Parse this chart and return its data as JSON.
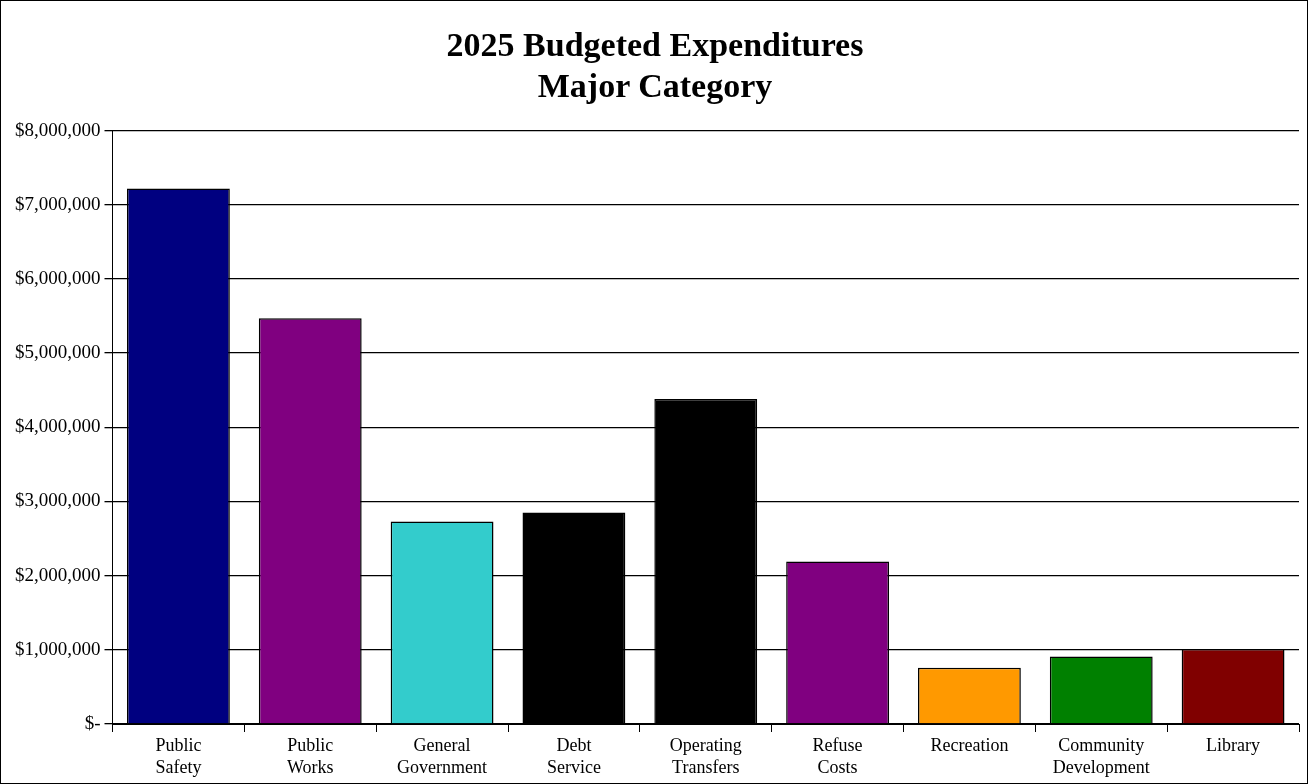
{
  "chart_data": {
    "type": "bar",
    "title": "2025 Budgeted Expenditures",
    "subtitle": "Major Category",
    "categories": [
      "Public Safety",
      "Public Works",
      "General Government",
      "Debt Service",
      "Operating Transfers",
      "Refuse Costs",
      "Recreation",
      "Community Development",
      "Library"
    ],
    "values": [
      7220000,
      5470000,
      2730000,
      2850000,
      4380000,
      2190000,
      760000,
      910000,
      1010000
    ],
    "colors": [
      "#000080",
      "#800080",
      "#33cccc",
      "#000000",
      "#000000",
      "#800080",
      "#ff9900",
      "#008000",
      "#800000"
    ],
    "ylim": [
      0,
      8000000
    ],
    "yticks": [
      {
        "value": 0,
        "label": "$-"
      },
      {
        "value": 1000000,
        "label": "$1,000,000"
      },
      {
        "value": 2000000,
        "label": "$2,000,000"
      },
      {
        "value": 3000000,
        "label": "$3,000,000"
      },
      {
        "value": 4000000,
        "label": "$4,000,000"
      },
      {
        "value": 5000000,
        "label": "$5,000,000"
      },
      {
        "value": 6000000,
        "label": "$6,000,000"
      },
      {
        "value": 7000000,
        "label": "$7,000,000"
      },
      {
        "value": 8000000,
        "label": "$8,000,000"
      }
    ],
    "grid": "y",
    "legend": false
  }
}
